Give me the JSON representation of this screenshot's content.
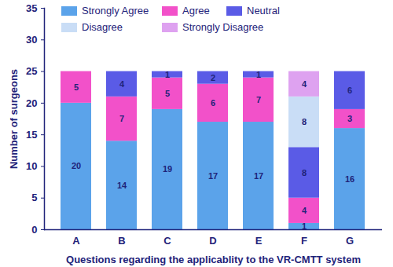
{
  "chart_data": {
    "type": "bar",
    "stacked": true,
    "data_labels": true,
    "grid": false,
    "legend": "top-left",
    "x_label": "Questions regarding the applicablity to the VR-CMTT system",
    "y_label": "Number of surgeons",
    "categories": [
      "A",
      "B",
      "C",
      "D",
      "E",
      "F",
      "G"
    ],
    "ylim": [
      0,
      35
    ],
    "yticks": [
      0,
      5,
      10,
      15,
      20,
      25,
      30,
      35
    ],
    "series": [
      {
        "name": "Strongly Agree",
        "color": "#5ba3ea",
        "values": [
          20,
          14,
          19,
          17,
          17,
          1,
          16
        ]
      },
      {
        "name": "Agree",
        "color": "#f251c9",
        "values": [
          5,
          7,
          5,
          6,
          7,
          4,
          3
        ]
      },
      {
        "name": "Neutral",
        "color": "#5a5be6",
        "values": [
          0,
          4,
          1,
          2,
          1,
          8,
          6
        ]
      },
      {
        "name": "Disagree",
        "color": "#c9ddf6",
        "values": [
          0,
          0,
          0,
          0,
          0,
          8,
          0
        ]
      },
      {
        "name": "Strongly Disagree",
        "color": "#dea2f0",
        "values": [
          0,
          0,
          0,
          0,
          0,
          4,
          0
        ]
      }
    ]
  }
}
